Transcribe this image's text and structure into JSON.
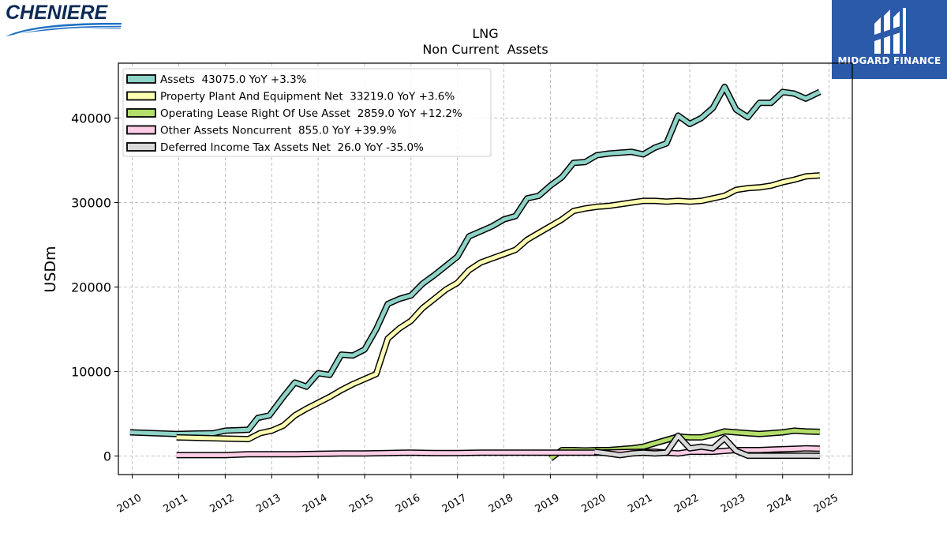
{
  "header": {
    "company_logo_text": "CHENIERE",
    "brand_text": "MIDGARD FINANCE"
  },
  "colors": {
    "assets": "#8dd3c7",
    "ppe": "#ffffb3",
    "lease": "#b3de69",
    "other": "#fccde5",
    "deferred": "#d9d9d9",
    "brand_blue": "#2a5aa8"
  },
  "chart_data": {
    "type": "line",
    "title": "LNG",
    "subtitle": "Non Current  Assets",
    "xlabel": "",
    "ylabel": "USDm",
    "xlim": [
      2009.7,
      2025.5
    ],
    "ylim": [
      -2200,
      46500
    ],
    "grid": true,
    "legend_position": "top-left",
    "x_ticks": [
      "2010",
      "2011",
      "2012",
      "2013",
      "2014",
      "2015",
      "2016",
      "2017",
      "2018",
      "2019",
      "2020",
      "2021",
      "2022",
      "2023",
      "2024",
      "2025"
    ],
    "y_ticks": [
      0,
      10000,
      20000,
      30000,
      40000
    ],
    "series": [
      {
        "name": "Assets  43075.0 YoY +3.3%",
        "color_key": "assets",
        "points": [
          [
            2009.95,
            2800
          ],
          [
            2010.95,
            2600
          ],
          [
            2011.75,
            2700
          ],
          [
            2012.0,
            3000
          ],
          [
            2012.5,
            3100
          ],
          [
            2012.7,
            4500
          ],
          [
            2012.95,
            4800
          ],
          [
            2013.25,
            7000
          ],
          [
            2013.5,
            8700
          ],
          [
            2013.75,
            8200
          ],
          [
            2014.0,
            9800
          ],
          [
            2014.25,
            9600
          ],
          [
            2014.5,
            12000
          ],
          [
            2014.75,
            11900
          ],
          [
            2015.0,
            12600
          ],
          [
            2015.25,
            15000
          ],
          [
            2015.5,
            18000
          ],
          [
            2015.75,
            18600
          ],
          [
            2016.0,
            19000
          ],
          [
            2016.25,
            20400
          ],
          [
            2016.5,
            21400
          ],
          [
            2016.75,
            22500
          ],
          [
            2017.0,
            23600
          ],
          [
            2017.25,
            26000
          ],
          [
            2017.5,
            26600
          ],
          [
            2017.75,
            27200
          ],
          [
            2018.0,
            28000
          ],
          [
            2018.25,
            28400
          ],
          [
            2018.5,
            30500
          ],
          [
            2018.75,
            30800
          ],
          [
            2019.0,
            32000
          ],
          [
            2019.25,
            33000
          ],
          [
            2019.5,
            34700
          ],
          [
            2019.75,
            34800
          ],
          [
            2020.0,
            35600
          ],
          [
            2020.25,
            35800
          ],
          [
            2020.5,
            35900
          ],
          [
            2020.75,
            36000
          ],
          [
            2021.0,
            35700
          ],
          [
            2021.25,
            36500
          ],
          [
            2021.5,
            37000
          ],
          [
            2021.75,
            40300
          ],
          [
            2022.0,
            39300
          ],
          [
            2022.25,
            40000
          ],
          [
            2022.5,
            41200
          ],
          [
            2022.75,
            43700
          ],
          [
            2023.0,
            41000
          ],
          [
            2023.25,
            40100
          ],
          [
            2023.5,
            41800
          ],
          [
            2023.75,
            41800
          ],
          [
            2024.0,
            43100
          ],
          [
            2024.25,
            42900
          ],
          [
            2024.5,
            42300
          ],
          [
            2024.8,
            43100
          ]
        ]
      },
      {
        "name": "Property Plant And Equipment Net  33219.0 YoY +3.6%",
        "color_key": "ppe",
        "points": [
          [
            2010.95,
            2200
          ],
          [
            2012.5,
            2000
          ],
          [
            2012.75,
            2700
          ],
          [
            2013.0,
            3000
          ],
          [
            2013.25,
            3600
          ],
          [
            2013.5,
            4800
          ],
          [
            2013.75,
            5600
          ],
          [
            2014.0,
            6300
          ],
          [
            2014.25,
            7000
          ],
          [
            2014.5,
            7800
          ],
          [
            2014.75,
            8500
          ],
          [
            2015.0,
            9100
          ],
          [
            2015.25,
            9700
          ],
          [
            2015.5,
            13900
          ],
          [
            2015.75,
            15100
          ],
          [
            2016.0,
            16000
          ],
          [
            2016.25,
            17500
          ],
          [
            2016.5,
            18600
          ],
          [
            2016.75,
            19700
          ],
          [
            2017.0,
            20500
          ],
          [
            2017.25,
            22000
          ],
          [
            2017.5,
            22900
          ],
          [
            2017.75,
            23400
          ],
          [
            2018.0,
            23900
          ],
          [
            2018.25,
            24400
          ],
          [
            2018.5,
            25600
          ],
          [
            2018.75,
            26400
          ],
          [
            2019.0,
            27200
          ],
          [
            2019.25,
            28000
          ],
          [
            2019.5,
            29000
          ],
          [
            2019.75,
            29300
          ],
          [
            2020.0,
            29500
          ],
          [
            2020.25,
            29600
          ],
          [
            2020.5,
            29800
          ],
          [
            2020.75,
            30000
          ],
          [
            2021.0,
            30200
          ],
          [
            2021.25,
            30200
          ],
          [
            2021.5,
            30100
          ],
          [
            2021.75,
            30200
          ],
          [
            2022.0,
            30100
          ],
          [
            2022.25,
            30200
          ],
          [
            2022.5,
            30500
          ],
          [
            2022.75,
            30800
          ],
          [
            2023.0,
            31500
          ],
          [
            2023.25,
            31700
          ],
          [
            2023.5,
            31800
          ],
          [
            2023.75,
            32000
          ],
          [
            2024.0,
            32400
          ],
          [
            2024.25,
            32700
          ],
          [
            2024.5,
            33100
          ],
          [
            2024.8,
            33219
          ]
        ]
      },
      {
        "name": "Operating Lease Right Of Use Asset  2859.0 YoY +12.2%",
        "color_key": "lease",
        "points": [
          [
            2019.0,
            -300
          ],
          [
            2019.25,
            700
          ],
          [
            2019.5,
            700
          ],
          [
            2019.75,
            650
          ],
          [
            2020.0,
            700
          ],
          [
            2020.25,
            700
          ],
          [
            2020.5,
            800
          ],
          [
            2020.75,
            900
          ],
          [
            2021.0,
            1100
          ],
          [
            2021.25,
            1500
          ],
          [
            2021.5,
            1900
          ],
          [
            2021.75,
            2300
          ],
          [
            2022.0,
            2200
          ],
          [
            2022.25,
            2200
          ],
          [
            2022.5,
            2500
          ],
          [
            2022.75,
            2900
          ],
          [
            2023.0,
            2800
          ],
          [
            2023.25,
            2700
          ],
          [
            2023.5,
            2600
          ],
          [
            2023.75,
            2700
          ],
          [
            2024.0,
            2800
          ],
          [
            2024.25,
            3000
          ],
          [
            2024.5,
            2900
          ],
          [
            2024.8,
            2859
          ]
        ]
      },
      {
        "name": "Other Assets Noncurrent  855.0 YoY +39.9%",
        "color_key": "other",
        "points": [
          [
            2010.95,
            100
          ],
          [
            2012.0,
            100
          ],
          [
            2012.5,
            200
          ],
          [
            2013.0,
            200
          ],
          [
            2013.5,
            200
          ],
          [
            2014.0,
            250
          ],
          [
            2014.5,
            300
          ],
          [
            2015.0,
            300
          ],
          [
            2015.5,
            350
          ],
          [
            2016.0,
            400
          ],
          [
            2016.5,
            350
          ],
          [
            2017.0,
            350
          ],
          [
            2017.5,
            400
          ],
          [
            2018.0,
            400
          ],
          [
            2018.5,
            400
          ],
          [
            2019.0,
            400
          ],
          [
            2019.5,
            400
          ],
          [
            2020.0,
            400
          ],
          [
            2020.5,
            450
          ],
          [
            2021.0,
            500
          ],
          [
            2021.25,
            500
          ],
          [
            2021.5,
            400
          ],
          [
            2021.75,
            300
          ],
          [
            2022.0,
            500
          ],
          [
            2022.25,
            500
          ],
          [
            2022.5,
            500
          ],
          [
            2022.75,
            600
          ],
          [
            2023.0,
            700
          ],
          [
            2023.25,
            700
          ],
          [
            2023.5,
            700
          ],
          [
            2023.75,
            750
          ],
          [
            2024.0,
            800
          ],
          [
            2024.25,
            850
          ],
          [
            2024.5,
            900
          ],
          [
            2024.8,
            855
          ]
        ]
      },
      {
        "name": "Deferred Income Tax Assets Net  26.0 YoY -35.0%",
        "color_key": "deferred",
        "points": [
          [
            2019.95,
            500
          ],
          [
            2020.25,
            300
          ],
          [
            2020.5,
            100
          ],
          [
            2020.75,
            300
          ],
          [
            2021.0,
            400
          ],
          [
            2021.25,
            300
          ],
          [
            2021.5,
            400
          ],
          [
            2021.75,
            2400
          ],
          [
            2022.0,
            900
          ],
          [
            2022.25,
            1100
          ],
          [
            2022.5,
            900
          ],
          [
            2022.75,
            2100
          ],
          [
            2023.0,
            600
          ],
          [
            2023.25,
            30
          ],
          [
            2023.5,
            30
          ],
          [
            2023.75,
            30
          ],
          [
            2024.0,
            30
          ],
          [
            2024.25,
            30
          ],
          [
            2024.5,
            30
          ],
          [
            2024.8,
            26
          ]
        ]
      }
    ]
  }
}
